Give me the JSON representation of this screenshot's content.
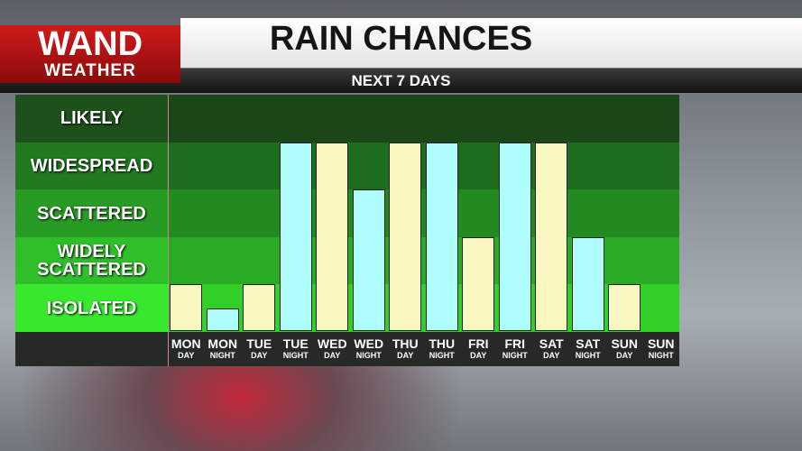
{
  "logo": {
    "line1": "WAND",
    "line2": "WEATHER"
  },
  "chart_data": {
    "type": "bar",
    "title": "RAIN CHANCES",
    "subtitle": "NEXT 7 DAYS",
    "categories": [
      "MON",
      "MON",
      "TUE",
      "TUE",
      "WED",
      "WED",
      "THU",
      "THU",
      "FRI",
      "FRI",
      "SAT",
      "SAT",
      "SUN",
      "SUN"
    ],
    "category_sublabels": [
      "DAY",
      "NIGHT",
      "DAY",
      "NIGHT",
      "DAY",
      "NIGHT",
      "DAY",
      "NIGHT",
      "DAY",
      "NIGHT",
      "DAY",
      "NIGHT",
      "DAY",
      "NIGHT"
    ],
    "values": [
      1,
      0.5,
      1,
      4,
      4,
      3,
      4,
      4,
      2,
      4,
      4,
      2,
      1,
      0
    ],
    "colors": [
      "#fbf7c2",
      "#b0fdfd",
      "#fbf7c2",
      "#b0fdfd",
      "#fbf7c2",
      "#b0fdfd",
      "#fbf7c2",
      "#b0fdfd",
      "#fbf7c2",
      "#b0fdfd",
      "#fbf7c2",
      "#b0fdfd",
      "#fbf7c2",
      "#b0fdfd"
    ],
    "ylim": [
      0,
      5
    ],
    "yticks": [
      {
        "value": 0.5,
        "label": "ISOLATED"
      },
      {
        "value": 1.5,
        "label": "WIDELY SCATTERED"
      },
      {
        "value": 2.5,
        "label": "SCATTERED"
      },
      {
        "value": 3.5,
        "label": "WIDESPREAD"
      },
      {
        "value": 4.5,
        "label": "LIKELY"
      }
    ],
    "band_colors": [
      "#31cf28",
      "#2aab25",
      "#238a1f",
      "#1e6c1d",
      "#1b4718"
    ]
  }
}
